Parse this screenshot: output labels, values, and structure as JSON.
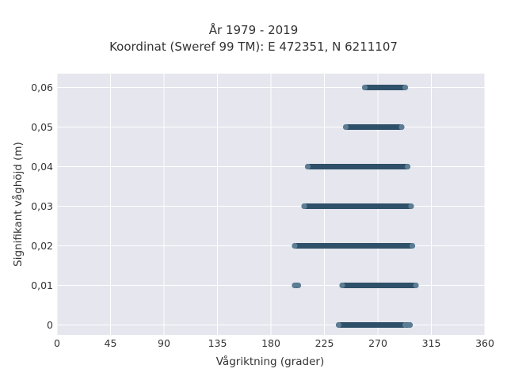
{
  "chart_data": {
    "type": "scatter",
    "title": "År 1979 - 2019",
    "subtitle": "Koordinat (Sweref 99 TM): E 472351, N 6211107",
    "xlabel": "Vågriktning (grader)",
    "ylabel": "Signifikant våghöjd (m)",
    "xlim": [
      0,
      360
    ],
    "ylim": [
      -0.0025,
      0.0635
    ],
    "xticks": [
      0,
      45,
      90,
      135,
      180,
      225,
      270,
      315,
      360
    ],
    "xtick_labels": [
      "0",
      "45",
      "90",
      "135",
      "180",
      "225",
      "270",
      "315",
      "360"
    ],
    "yticks": [
      0,
      0.01,
      0.02,
      0.03,
      0.04,
      0.05,
      0.06
    ],
    "ytick_labels": [
      "0",
      "0,01",
      "0,02",
      "0,03",
      "0,04",
      "0,05",
      "0,06"
    ],
    "grid": true,
    "background": "#e5e6ee",
    "marker_color": "#2e5068",
    "marker_outline": "#5d7d95",
    "series": [
      {
        "points": [
          {
            "y": 0.06,
            "x_range": [
              259,
              293
            ]
          },
          {
            "y": 0.05,
            "x_range": [
              243,
              290
            ]
          },
          {
            "y": 0.04,
            "x_range": [
              211,
              295
            ]
          },
          {
            "y": 0.03,
            "x_range": [
              208,
              298
            ]
          },
          {
            "y": 0.02,
            "x_range": [
              200,
              299
            ]
          },
          {
            "y": 0.01,
            "x_range": [
              240,
              302
            ]
          },
          {
            "y": 0.01,
            "x_range": [
              200,
              203
            ]
          },
          {
            "y": 0,
            "x_range": [
              237,
              297
            ]
          },
          {
            "y": 0,
            "x_range": [
              293,
              296
            ]
          }
        ]
      }
    ]
  }
}
